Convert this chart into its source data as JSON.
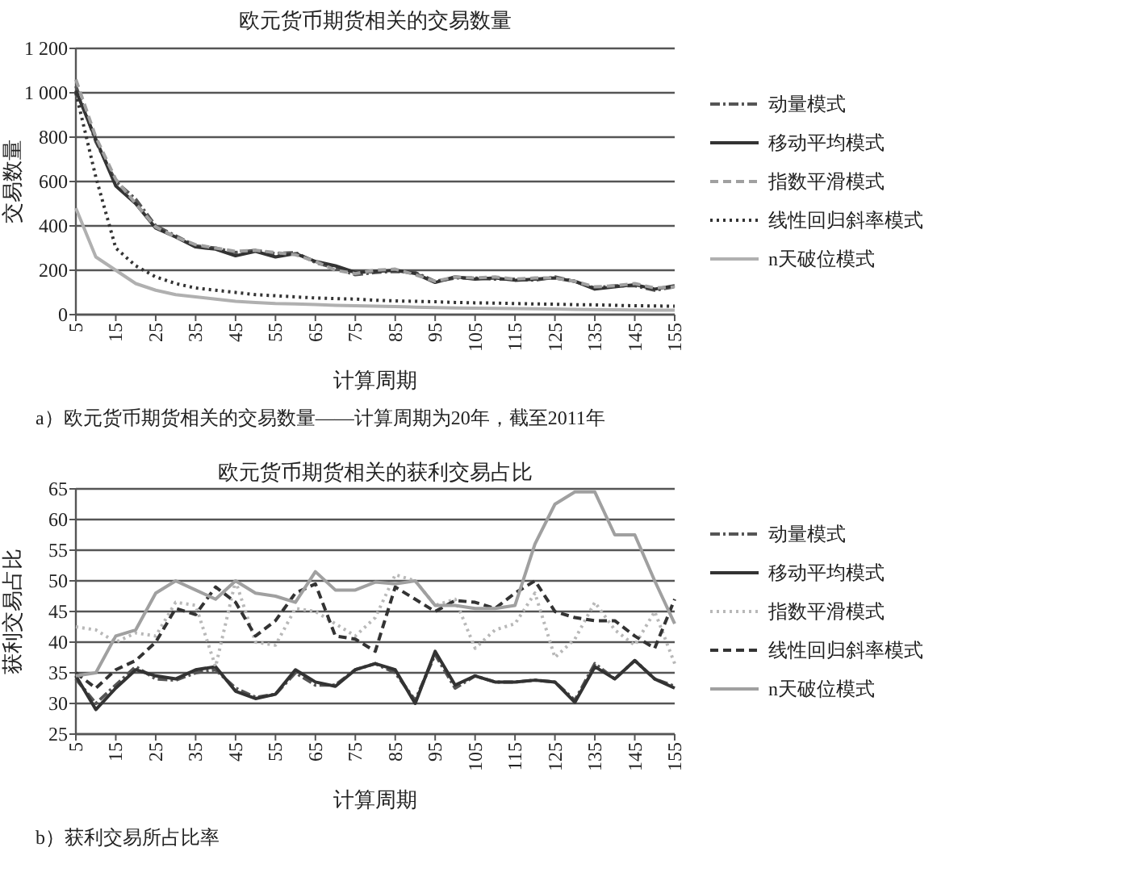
{
  "chart_data": [
    {
      "type": "line",
      "title": "欧元货币期货相关的交易数量",
      "xlabel": "计算周期",
      "ylabel": "交易数量",
      "annotations": [
        "a）欧元货币期货相关的交易数量——计算周期为20年，截至2011年"
      ],
      "x": [
        5,
        10,
        15,
        20,
        25,
        30,
        35,
        40,
        45,
        50,
        55,
        60,
        65,
        70,
        75,
        80,
        85,
        90,
        95,
        100,
        105,
        110,
        115,
        120,
        125,
        130,
        135,
        140,
        145,
        150,
        155
      ],
      "xlim": [
        5,
        155
      ],
      "xticks": [
        5,
        15,
        25,
        35,
        45,
        55,
        65,
        75,
        85,
        95,
        105,
        115,
        125,
        135,
        145,
        155
      ],
      "ylim": [
        0,
        1200
      ],
      "yticks": [
        0,
        200,
        400,
        600,
        800,
        {
          "value": 1000,
          "label": "1 000"
        },
        {
          "value": 1200,
          "label": "1 200"
        }
      ],
      "grid": "y",
      "legend": "right",
      "marker": "none",
      "series": [
        {
          "name": "动量模式",
          "color": "#555555",
          "line_style": "dashdot",
          "values": [
            1030,
            780,
            600,
            520,
            400,
            355,
            310,
            300,
            280,
            290,
            275,
            280,
            235,
            210,
            180,
            190,
            195,
            190,
            150,
            165,
            165,
            160,
            160,
            155,
            170,
            150,
            120,
            130,
            130,
            110,
            125
          ]
        },
        {
          "name": "移动平均模式",
          "color": "#333333",
          "line_style": "solid",
          "values": [
            1010,
            790,
            580,
            500,
            390,
            350,
            305,
            295,
            265,
            285,
            260,
            275,
            240,
            220,
            190,
            195,
            200,
            185,
            145,
            170,
            160,
            165,
            155,
            160,
            165,
            150,
            115,
            125,
            135,
            115,
            130
          ]
        },
        {
          "name": "指数平滑模式",
          "color": "#a0a0a0",
          "line_style": "dashed",
          "values": [
            1060,
            800,
            610,
            500,
            395,
            350,
            315,
            300,
            285,
            290,
            280,
            270,
            240,
            200,
            185,
            200,
            205,
            180,
            150,
            170,
            165,
            170,
            160,
            165,
            165,
            150,
            125,
            130,
            140,
            120,
            125
          ]
        },
        {
          "name": "线性回归斜率模式",
          "color": "#333333",
          "line_style": "dotted",
          "values": [
            1000,
            620,
            300,
            220,
            170,
            140,
            120,
            110,
            100,
            90,
            85,
            80,
            75,
            72,
            70,
            65,
            62,
            60,
            58,
            55,
            53,
            52,
            50,
            48,
            47,
            45,
            44,
            42,
            40,
            39,
            38
          ]
        },
        {
          "name": "n天破位模式",
          "color": "#b0b0b0",
          "line_style": "solid",
          "values": [
            480,
            260,
            200,
            140,
            110,
            90,
            80,
            70,
            60,
            55,
            50,
            48,
            45,
            42,
            40,
            38,
            36,
            34,
            32,
            30,
            29,
            28,
            27,
            26,
            25,
            24,
            23,
            22,
            21,
            20,
            20
          ]
        }
      ]
    },
    {
      "type": "line",
      "title": "欧元货币期货相关的获利交易占比",
      "xlabel": "计算周期",
      "ylabel": "获利交易占比",
      "annotations": [
        "b）获利交易所占比率"
      ],
      "x": [
        5,
        10,
        15,
        20,
        25,
        30,
        35,
        40,
        45,
        50,
        55,
        60,
        65,
        70,
        75,
        80,
        85,
        90,
        95,
        100,
        105,
        110,
        115,
        120,
        125,
        130,
        135,
        140,
        145,
        150,
        155
      ],
      "xlim": [
        5,
        155
      ],
      "xticks": [
        5,
        15,
        25,
        35,
        45,
        55,
        65,
        75,
        85,
        95,
        105,
        115,
        125,
        135,
        145,
        155
      ],
      "ylim": [
        25,
        65
      ],
      "yticks": [
        25,
        30,
        35,
        40,
        45,
        50,
        55,
        60,
        65
      ],
      "grid": "y",
      "legend": "right",
      "marker": "none",
      "series": [
        {
          "name": "动量模式",
          "color": "#555555",
          "line_style": "dashdot",
          "values": [
            34,
            30,
            33,
            36,
            34,
            33.8,
            35,
            35.5,
            32.5,
            31,
            31.5,
            35,
            33,
            33,
            35.5,
            36.5,
            35,
            30.5,
            38,
            32.5,
            34.5,
            33.5,
            33.5,
            33.8,
            33.5,
            30.5,
            36.5,
            34,
            37,
            34,
            32.8
          ]
        },
        {
          "name": "移动平均模式",
          "color": "#333333",
          "line_style": "solid",
          "values": [
            34.5,
            29,
            32.5,
            35.5,
            34.5,
            34,
            35.5,
            36,
            32,
            30.8,
            31.5,
            35.5,
            33.5,
            32.8,
            35.5,
            36.5,
            35.5,
            30,
            38.5,
            33,
            34.5,
            33.5,
            33.5,
            33.8,
            33.5,
            30.2,
            36,
            34,
            37,
            34,
            32.5
          ]
        },
        {
          "name": "指数平滑模式",
          "color": "#b8b8b8",
          "line_style": "dotted",
          "values": [
            42.5,
            42,
            40,
            41.5,
            41,
            46.5,
            46,
            36,
            50,
            40,
            39.5,
            45.5,
            45,
            43,
            41,
            44,
            51,
            50,
            46,
            47,
            39,
            42,
            43,
            48,
            37.5,
            40.5,
            46.5,
            42,
            39.5,
            45,
            36.5
          ]
        },
        {
          "name": "线性回归斜率模式",
          "color": "#333333",
          "line_style": "dashed",
          "values": [
            35,
            32.5,
            35.5,
            37,
            40,
            45.5,
            44.5,
            49,
            46.5,
            41,
            43.5,
            48,
            49.5,
            41,
            40.5,
            38.5,
            49,
            47,
            45,
            46.8,
            46.5,
            45.5,
            48,
            50,
            45,
            44,
            43.5,
            43.5,
            41,
            39,
            47
          ]
        },
        {
          "name": "n天破位模式",
          "color": "#a0a0a0",
          "line_style": "solid",
          "values": [
            34.5,
            35,
            41,
            42,
            48,
            50,
            48.5,
            47,
            50,
            48,
            47.5,
            46.5,
            51.5,
            48.5,
            48.5,
            49.8,
            49.5,
            50,
            46,
            46,
            45.5,
            45.5,
            46,
            56,
            62.5,
            64.5,
            64.5,
            57.5,
            57.5,
            50,
            43
          ]
        }
      ]
    }
  ]
}
